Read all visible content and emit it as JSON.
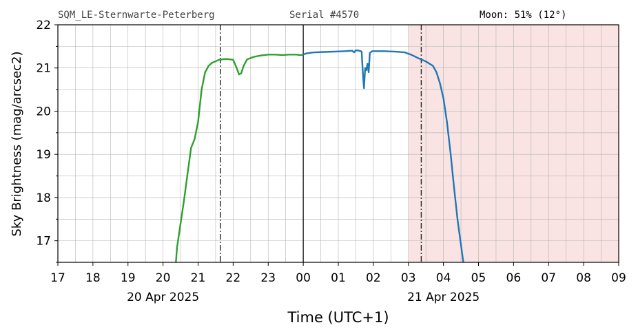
{
  "header": {
    "site": "SQM_LE-Sternwarte-Peterberg",
    "serial": "Serial #4570",
    "moon": "Moon: 51% (12°)"
  },
  "chart_data": {
    "type": "line",
    "xlabel": "Time (UTC+1)",
    "ylabel": "Sky Brightness (mag/arcsec2)",
    "xlim": [
      "2025-04-20 17:00",
      "2025-04-21 09:00"
    ],
    "ylim": [
      16.5,
      22
    ],
    "x_tick_labels": [
      "17",
      "18",
      "19",
      "20",
      "21",
      "22",
      "23",
      "00",
      "01",
      "02",
      "03",
      "04",
      "05",
      "06",
      "07",
      "08",
      "09"
    ],
    "date_labels": [
      {
        "text": "20 Apr 2025",
        "at": "2025-04-20 20:00"
      },
      {
        "text": "21 Apr 2025",
        "at": "2025-04-21 04:00"
      }
    ],
    "y_tick_labels": [
      "17",
      "18",
      "19",
      "20",
      "21",
      "22"
    ],
    "grid": true,
    "midnight_line": "2025-04-21 00:00",
    "dashdot_lines": [
      "2025-04-20 21:38",
      "2025-04-21 03:22"
    ],
    "shaded_region": {
      "from": "2025-04-21 03:00",
      "to": "2025-04-21 09:00",
      "color": "#f9e3e3"
    },
    "series": [
      {
        "color": "#2ca02c",
        "points": [
          [
            "2025-04-20 20:22",
            16.5
          ],
          [
            "2025-04-20 20:24",
            16.85
          ],
          [
            "2025-04-20 20:30",
            17.4
          ],
          [
            "2025-04-20 20:36",
            17.95
          ],
          [
            "2025-04-20 20:42",
            18.55
          ],
          [
            "2025-04-20 20:48",
            19.15
          ],
          [
            "2025-04-20 20:54",
            19.35
          ],
          [
            "2025-04-20 21:00",
            19.75
          ],
          [
            "2025-04-20 21:06",
            20.5
          ],
          [
            "2025-04-20 21:12",
            20.9
          ],
          [
            "2025-04-20 21:18",
            21.05
          ],
          [
            "2025-04-20 21:24",
            21.12
          ],
          [
            "2025-04-20 21:36",
            21.19
          ],
          [
            "2025-04-20 21:48",
            21.21
          ],
          [
            "2025-04-20 22:00",
            21.19
          ],
          [
            "2025-04-20 22:06",
            21.0
          ],
          [
            "2025-04-20 22:10",
            20.85
          ],
          [
            "2025-04-20 22:14",
            20.88
          ],
          [
            "2025-04-20 22:18",
            21.05
          ],
          [
            "2025-04-20 22:24",
            21.2
          ],
          [
            "2025-04-20 22:36",
            21.26
          ],
          [
            "2025-04-20 22:48",
            21.29
          ],
          [
            "2025-04-20 23:00",
            21.31
          ],
          [
            "2025-04-20 23:12",
            21.31
          ],
          [
            "2025-04-20 23:24",
            21.3
          ],
          [
            "2025-04-20 23:36",
            21.31
          ],
          [
            "2025-04-20 23:48",
            21.31
          ],
          [
            "2025-04-20 23:54",
            21.3
          ],
          [
            "2025-04-20 23:58",
            21.3
          ]
        ]
      },
      {
        "color": "#1f77b4",
        "points": [
          [
            "2025-04-20 23:58",
            21.3
          ],
          [
            "2025-04-21 00:06",
            21.34
          ],
          [
            "2025-04-21 00:18",
            21.36
          ],
          [
            "2025-04-21 00:36",
            21.37
          ],
          [
            "2025-04-21 00:54",
            21.38
          ],
          [
            "2025-04-21 01:12",
            21.39
          ],
          [
            "2025-04-21 01:24",
            21.4
          ],
          [
            "2025-04-21 01:27",
            21.36
          ],
          [
            "2025-04-21 01:30",
            21.41
          ],
          [
            "2025-04-21 01:36",
            21.4
          ],
          [
            "2025-04-21 01:40",
            21.38
          ],
          [
            "2025-04-21 01:42",
            20.9
          ],
          [
            "2025-04-21 01:44",
            20.53
          ],
          [
            "2025-04-21 01:46",
            21.0
          ],
          [
            "2025-04-21 01:48",
            20.95
          ],
          [
            "2025-04-21 01:50",
            21.1
          ],
          [
            "2025-04-21 01:52",
            20.9
          ],
          [
            "2025-04-21 01:54",
            21.35
          ],
          [
            "2025-04-21 01:58",
            21.39
          ],
          [
            "2025-04-21 02:18",
            21.39
          ],
          [
            "2025-04-21 02:36",
            21.38
          ],
          [
            "2025-04-21 02:54",
            21.36
          ],
          [
            "2025-04-21 03:06",
            21.3
          ],
          [
            "2025-04-21 03:18",
            21.22
          ],
          [
            "2025-04-21 03:30",
            21.15
          ],
          [
            "2025-04-21 03:42",
            21.05
          ],
          [
            "2025-04-21 03:48",
            20.9
          ],
          [
            "2025-04-21 03:54",
            20.65
          ],
          [
            "2025-04-21 04:00",
            20.3
          ],
          [
            "2025-04-21 04:06",
            19.75
          ],
          [
            "2025-04-21 04:12",
            19.05
          ],
          [
            "2025-04-21 04:18",
            18.25
          ],
          [
            "2025-04-21 04:24",
            17.5
          ],
          [
            "2025-04-21 04:30",
            16.9
          ],
          [
            "2025-04-21 04:34",
            16.5
          ]
        ]
      }
    ]
  }
}
